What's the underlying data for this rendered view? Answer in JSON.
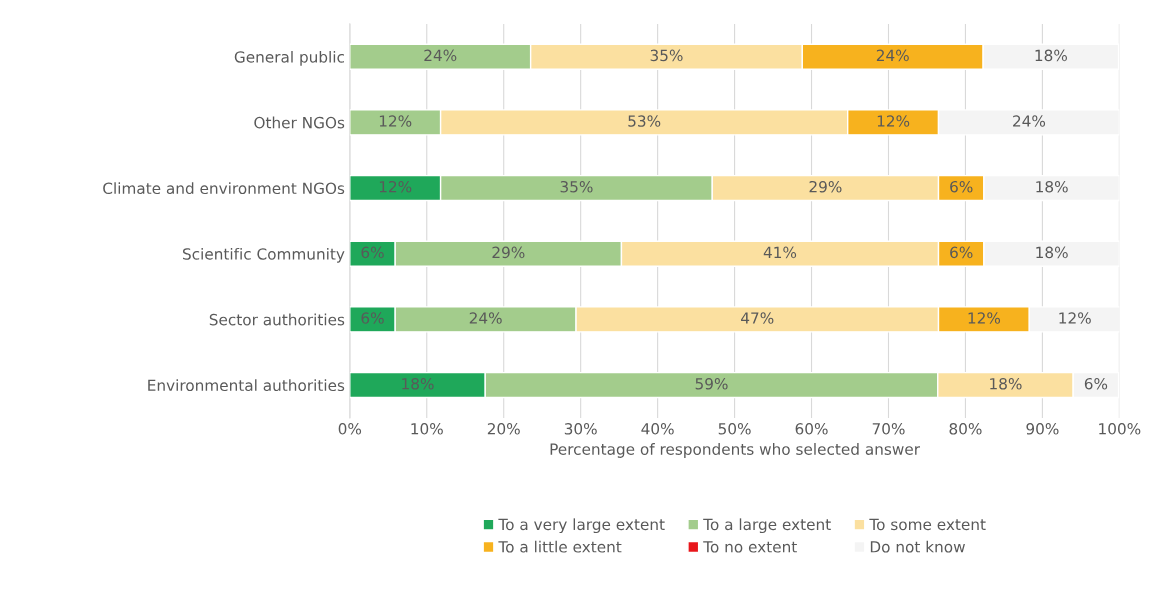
{
  "chart_data": {
    "type": "bar",
    "orientation": "horizontal",
    "stacked": true,
    "xlabel": "Percentage of respondents who selected answer",
    "categories": [
      "General public",
      "Other NGOs",
      "Climate and environment NGOs",
      "Scientific Community",
      "Sector authorities",
      "Environmental authorities"
    ],
    "series": [
      {
        "name": "To a very large extent",
        "color": "#1fa85a",
        "values": [
          null,
          null,
          11.8,
          5.9,
          5.9,
          17.6
        ],
        "value_labels": [
          null,
          null,
          "12%",
          "6%",
          "6%",
          "18%"
        ]
      },
      {
        "name": "To a large extent",
        "color": "#a3cc8c",
        "values": [
          23.5,
          11.8,
          35.3,
          29.4,
          23.5,
          58.8
        ],
        "value_labels": [
          "24%",
          "12%",
          "35%",
          "29%",
          "24%",
          "59%"
        ]
      },
      {
        "name": "To some extent",
        "color": "#fbe0a0",
        "values": [
          35.3,
          52.9,
          29.4,
          41.2,
          47.1,
          17.6
        ],
        "value_labels": [
          "35%",
          "53%",
          "29%",
          "41%",
          "47%",
          "18%"
        ]
      },
      {
        "name": "To a little extent",
        "color": "#f7b21e",
        "values": [
          23.5,
          11.8,
          5.9,
          5.9,
          11.8,
          null
        ],
        "value_labels": [
          "24%",
          "12%",
          "6%",
          "6%",
          "12%",
          null
        ]
      },
      {
        "name": "To no extent",
        "color": "#e8161b",
        "values": [
          null,
          null,
          null,
          null,
          null,
          null
        ],
        "value_labels": [
          null,
          null,
          null,
          null,
          null,
          null
        ]
      },
      {
        "name": "Do not know",
        "color": "#f4f4f4",
        "values": [
          17.6,
          23.5,
          17.6,
          17.6,
          11.8,
          5.9
        ],
        "value_labels": [
          "18%",
          "24%",
          "18%",
          "18%",
          "12%",
          "6%"
        ]
      }
    ],
    "xlim": [
      0,
      100
    ],
    "xticks": [
      {
        "value": 0,
        "label": "0%"
      },
      {
        "value": 10,
        "label": "10%"
      },
      {
        "value": 20,
        "label": "20%"
      },
      {
        "value": 30,
        "label": "30%"
      },
      {
        "value": 40,
        "label": "40%"
      },
      {
        "value": 50,
        "label": "50%"
      },
      {
        "value": 60,
        "label": "60%"
      },
      {
        "value": 70,
        "label": "70%"
      },
      {
        "value": 80,
        "label": "80%"
      },
      {
        "value": 90,
        "label": "90%"
      },
      {
        "value": 100,
        "label": "100%"
      }
    ],
    "grid": "x",
    "legend": "bottom"
  }
}
